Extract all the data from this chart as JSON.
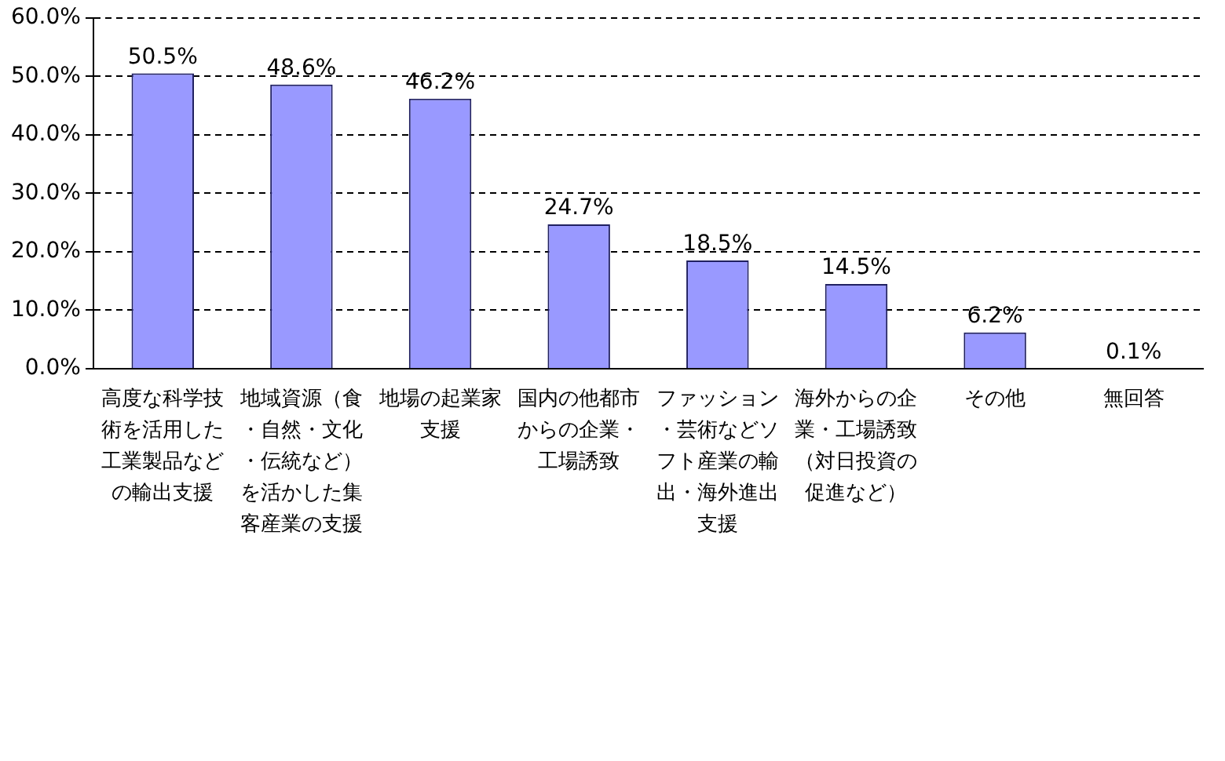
{
  "chart_data": {
    "type": "bar",
    "categories": [
      "高度な科学技術を活用した工業製品などの輸出支援",
      "地域資源（食・自然・文化・伝統など）を活かした集客産業の支援",
      "地場の起業家支援",
      "国内の他都市からの企業・工場誘致",
      "ファッション・芸術などソフト産業の輸出・海外進出支援",
      "海外からの企業・工場誘致（対日投資の促進など）",
      "その他",
      "無回答"
    ],
    "values": [
      50.5,
      48.6,
      46.2,
      24.7,
      18.5,
      14.5,
      6.2,
      0.1
    ],
    "value_labels": [
      "50.5%",
      "48.6%",
      "46.2%",
      "24.7%",
      "18.5%",
      "14.5%",
      "6.2%",
      "0.1%"
    ],
    "color": "#9999ff",
    "ylim": [
      0,
      60
    ],
    "yticks": [
      {
        "value": 0,
        "label": "0.0%"
      },
      {
        "value": 10,
        "label": "10.0%"
      },
      {
        "value": 20,
        "label": "20.0%"
      },
      {
        "value": 30,
        "label": "30.0%"
      },
      {
        "value": 40,
        "label": "40.0%"
      },
      {
        "value": 50,
        "label": "50.0%"
      },
      {
        "value": 60,
        "label": "60.0%"
      }
    ],
    "grid": "y",
    "legend": false
  }
}
